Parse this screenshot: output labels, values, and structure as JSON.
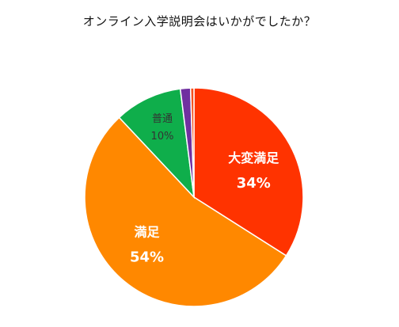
{
  "chart_data": {
    "type": "pie",
    "title": "オンライン入学説明会はいかがでしたか？",
    "start_angle_deg": 0,
    "direction": "clockwise",
    "slices": [
      {
        "label": "大変満足",
        "value": 34,
        "value_label": "34%",
        "color": "#ff3300",
        "label_style": "big"
      },
      {
        "label": "満足",
        "value": 54,
        "value_label": "54%",
        "color": "#ff8800",
        "label_style": "big"
      },
      {
        "label": "普通",
        "value": 10,
        "value_label": "10%",
        "color": "#0fae4b",
        "label_style": "small"
      },
      {
        "label": "",
        "value": 1.5,
        "value_label": "",
        "color": "#7030a0",
        "label_style": "none"
      },
      {
        "label": "",
        "value": 0.5,
        "value_label": "",
        "color": "#f4511e",
        "label_style": "none"
      }
    ]
  }
}
